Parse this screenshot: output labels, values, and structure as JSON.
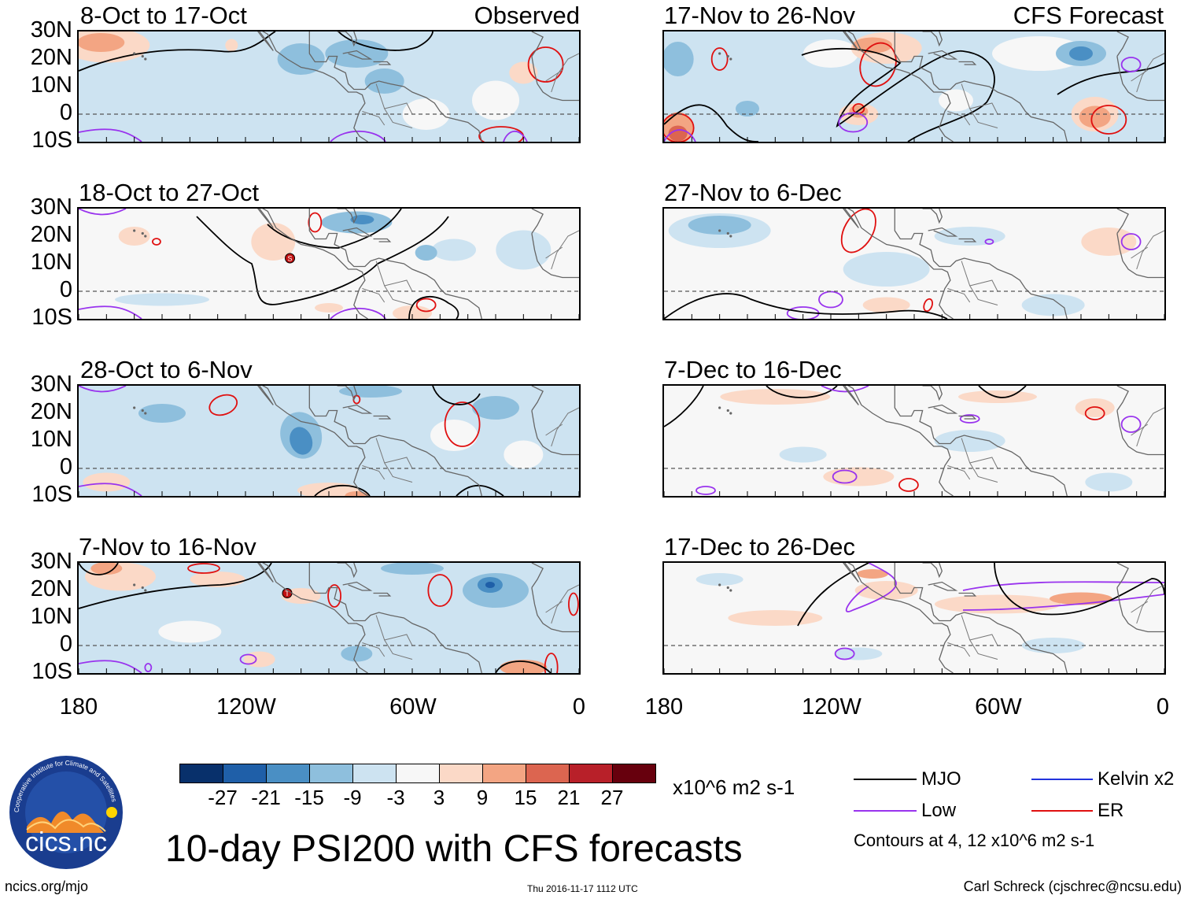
{
  "panels": [
    {
      "title": "8-Oct to 17-Oct",
      "tag": "Observed"
    },
    {
      "title": "17-Nov to 26-Nov",
      "tag": "CFS Forecast"
    },
    {
      "title": "18-Oct to 27-Oct",
      "tag": ""
    },
    {
      "title": "27-Nov to 6-Dec",
      "tag": ""
    },
    {
      "title": "28-Oct to 6-Nov",
      "tag": ""
    },
    {
      "title": "7-Dec to 16-Dec",
      "tag": ""
    },
    {
      "title": "7-Nov to 16-Nov",
      "tag": ""
    },
    {
      "title": "17-Dec to 26-Dec",
      "tag": ""
    }
  ],
  "lat_labels": [
    "30N",
    "20N",
    "10N",
    "0",
    "10S"
  ],
  "lon_labels": [
    "180",
    "120W",
    "60W",
    "0"
  ],
  "colorbar": {
    "colors": [
      "#08306b",
      "#1f5fa8",
      "#4a8fc4",
      "#8ebfdd",
      "#cde3f1",
      "#f7f7f7",
      "#fbd9c7",
      "#f3a583",
      "#dc6550",
      "#b82029",
      "#67000d"
    ],
    "labels": [
      "-27",
      "-21",
      "-15",
      "-9",
      "-3",
      "3",
      "9",
      "15",
      "21",
      "27"
    ],
    "units": "x10^6 m2 s-1"
  },
  "title": "10-day PSI200 with CFS forecasts",
  "legend": {
    "items": [
      {
        "label": "MJO",
        "color": "#000000"
      },
      {
        "label": "Kelvin x2",
        "color": "#2233dd"
      },
      {
        "label": "Low",
        "color": "#9933ee"
      },
      {
        "label": "ER",
        "color": "#e01010"
      }
    ],
    "note": "Contours at 4, 12 x10^6 m2 s-1"
  },
  "logo": {
    "text": "cics.nc",
    "ring_text": "Cooperative Institute for Climate and Satellites"
  },
  "footer": {
    "left": "ncics.org/mjo",
    "center": "Thu 2016-11-17 1112 UTC",
    "right": "Carl Schreck (cjschrec@ncsu.edu)"
  },
  "storm_markers": [
    {
      "panel": 2,
      "label": "S"
    },
    {
      "panel": 6,
      "label": "T"
    }
  ]
}
